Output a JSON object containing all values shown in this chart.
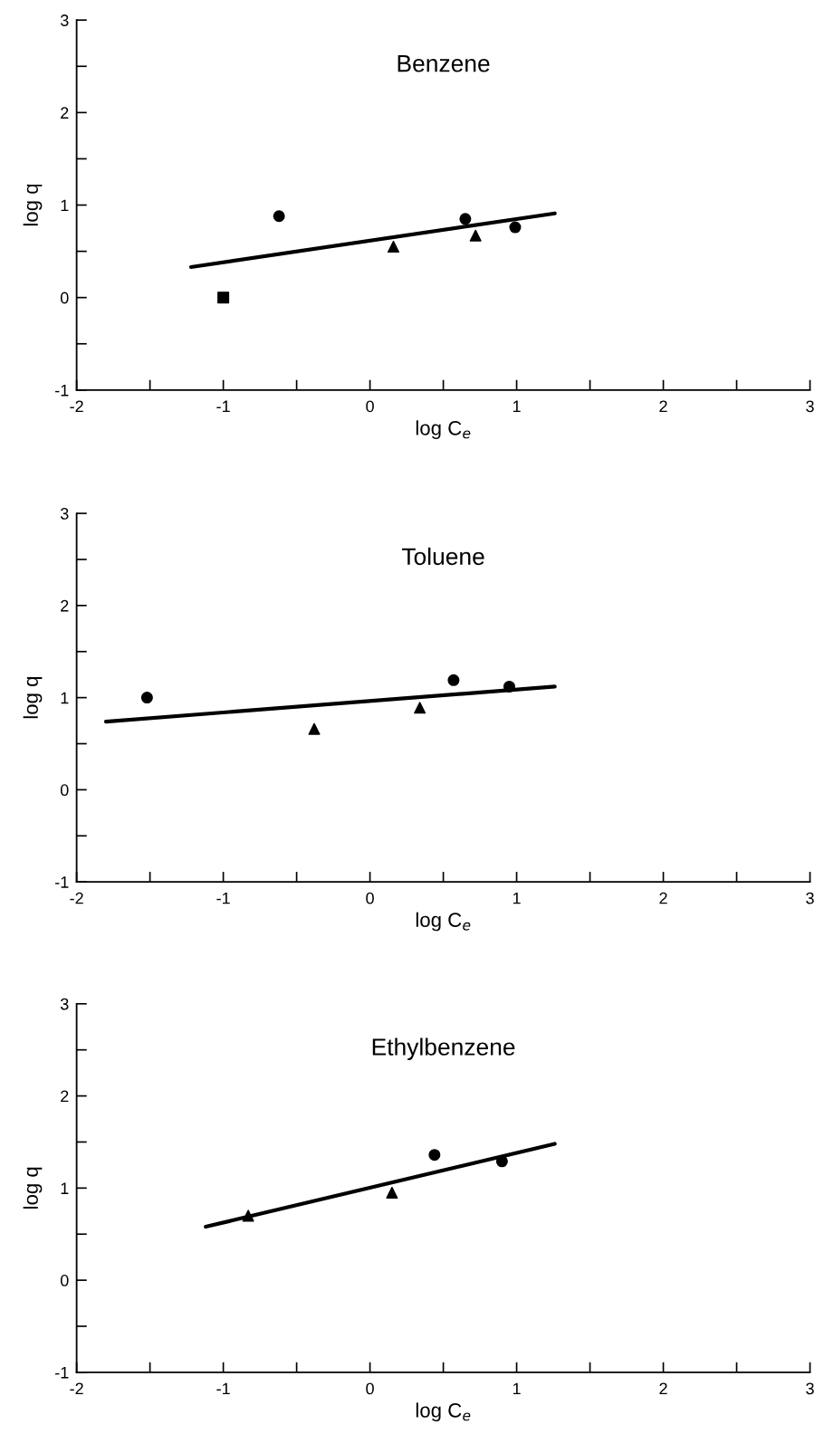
{
  "chart_data": [
    {
      "type": "scatter",
      "title": "Benzene",
      "xlabel": "log C$_{e}$",
      "ylabel": "log q",
      "xlim": [
        -2,
        3
      ],
      "ylim": [
        -1,
        3
      ],
      "xticks": [
        -2,
        {
          "value": -1.5,
          "label": null
        },
        -1,
        {
          "value": -0.5,
          "label": null
        },
        0,
        {
          "value": 0.5,
          "label": null
        },
        1,
        {
          "value": 1.5,
          "label": null
        },
        2,
        {
          "value": 2.5,
          "label": null
        },
        3
      ],
      "yticks": [
        -1,
        {
          "value": -0.5,
          "label": null
        },
        0,
        {
          "value": 0.5,
          "label": null
        },
        1,
        {
          "value": 1.5,
          "label": null
        },
        2,
        {
          "value": 2.5,
          "label": null
        },
        3
      ],
      "grid": false,
      "legend": false,
      "series": [
        {
          "marker": "circle",
          "color": "#000000",
          "x": [
            -0.62,
            0.65,
            0.99
          ],
          "values": [
            0.88,
            0.85,
            0.76
          ]
        },
        {
          "marker": "triangle",
          "color": "#000000",
          "x": [
            0.16,
            0.72
          ],
          "values": [
            0.55,
            0.67
          ]
        },
        {
          "marker": "square",
          "color": "#000000",
          "x": [
            -1.0
          ],
          "values": [
            0.0
          ]
        },
        {
          "type": "line",
          "marker": "none",
          "line_style": "solid",
          "color": "#000000",
          "x": [
            -1.22,
            1.26
          ],
          "values": [
            0.33,
            0.91
          ]
        }
      ]
    },
    {
      "type": "scatter",
      "title": "Toluene",
      "xlabel": "log C$_{e}$",
      "ylabel": "log q",
      "xlim": [
        -2,
        3
      ],
      "ylim": [
        -1,
        3
      ],
      "xticks": [
        -2,
        {
          "value": -1.5,
          "label": null
        },
        -1,
        {
          "value": -0.5,
          "label": null
        },
        0,
        {
          "value": 0.5,
          "label": null
        },
        1,
        {
          "value": 1.5,
          "label": null
        },
        2,
        {
          "value": 2.5,
          "label": null
        },
        3
      ],
      "yticks": [
        -1,
        {
          "value": -0.5,
          "label": null
        },
        0,
        {
          "value": 0.5,
          "label": null
        },
        1,
        {
          "value": 1.5,
          "label": null
        },
        2,
        {
          "value": 2.5,
          "label": null
        },
        3
      ],
      "grid": false,
      "legend": false,
      "series": [
        {
          "marker": "circle",
          "color": "#000000",
          "x": [
            -1.52,
            0.57,
            0.95
          ],
          "values": [
            1.0,
            1.19,
            1.12
          ]
        },
        {
          "marker": "triangle",
          "color": "#000000",
          "x": [
            -0.38,
            0.34
          ],
          "values": [
            0.66,
            0.89
          ]
        },
        {
          "type": "line",
          "marker": "none",
          "line_style": "solid",
          "color": "#000000",
          "x": [
            -1.8,
            1.26
          ],
          "values": [
            0.74,
            1.12
          ]
        }
      ]
    },
    {
      "type": "scatter",
      "title": "Ethylbenzene",
      "xlabel": "log C$_{e}$",
      "ylabel": "log q",
      "xlim": [
        -2,
        3
      ],
      "ylim": [
        -1,
        3
      ],
      "xticks": [
        -2,
        {
          "value": -1.5,
          "label": null
        },
        -1,
        {
          "value": -0.5,
          "label": null
        },
        0,
        {
          "value": 0.5,
          "label": null
        },
        1,
        {
          "value": 1.5,
          "label": null
        },
        2,
        {
          "value": 2.5,
          "label": null
        },
        3
      ],
      "yticks": [
        -1,
        {
          "value": -0.5,
          "label": null
        },
        0,
        {
          "value": 0.5,
          "label": null
        },
        1,
        {
          "value": 1.5,
          "label": null
        },
        2,
        {
          "value": 2.5,
          "label": null
        },
        3
      ],
      "grid": false,
      "legend": false,
      "series": [
        {
          "marker": "circle",
          "color": "#000000",
          "x": [
            0.44,
            0.9
          ],
          "values": [
            1.36,
            1.29
          ]
        },
        {
          "marker": "triangle",
          "color": "#000000",
          "x": [
            -0.83,
            0.15
          ],
          "values": [
            0.7,
            0.95
          ]
        },
        {
          "type": "line",
          "marker": "none",
          "line_style": "solid",
          "color": "#000000",
          "x": [
            -1.12,
            1.26
          ],
          "values": [
            0.58,
            1.48
          ]
        }
      ]
    }
  ]
}
